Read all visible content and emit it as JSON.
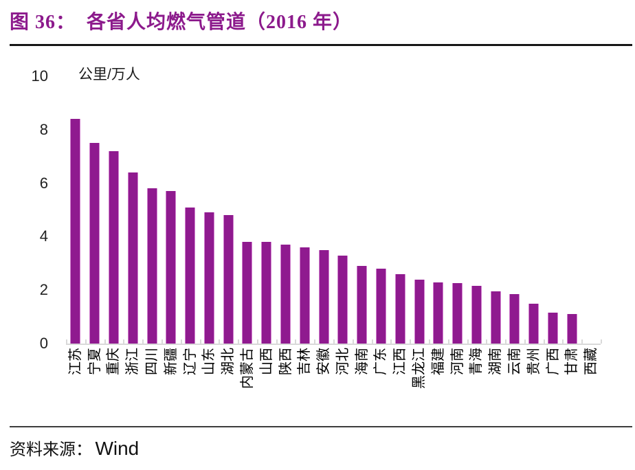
{
  "header": {
    "title": "图 36：  各省人均燃气管道（2016 年）",
    "title_color": "#8C1A8C"
  },
  "chart_data": {
    "type": "bar",
    "figure_label": "图 36",
    "title": "各省人均燃气管道（2016 年）",
    "unit_label": "公里/万人",
    "categories": [
      "江苏",
      "宁夏",
      "重庆",
      "浙江",
      "四川",
      "新疆",
      "辽宁",
      "山东",
      "湖北",
      "内蒙古",
      "山西",
      "陕西",
      "吉林",
      "安徽",
      "河北",
      "海南",
      "广东",
      "江西",
      "黑龙江",
      "福建",
      "河南",
      "青海",
      "湖南",
      "云南",
      "贵州",
      "广西",
      "甘肃",
      "西藏"
    ],
    "values": [
      8.4,
      7.5,
      7.2,
      6.4,
      5.8,
      5.7,
      5.1,
      4.9,
      4.8,
      3.8,
      3.8,
      3.7,
      3.6,
      3.5,
      3.3,
      2.9,
      2.8,
      2.6,
      2.4,
      2.3,
      2.25,
      2.15,
      1.95,
      1.85,
      1.5,
      1.15,
      1.1,
      0
    ],
    "ylim": [
      0,
      10
    ],
    "yticks": [
      0,
      2,
      4,
      6,
      8,
      10
    ],
    "grid": false,
    "legend": "none",
    "bar_color": "#8F1A8F",
    "axis_color": "#D9D9D9"
  },
  "source": {
    "prefix": "资料来源：",
    "name": "Wind"
  }
}
